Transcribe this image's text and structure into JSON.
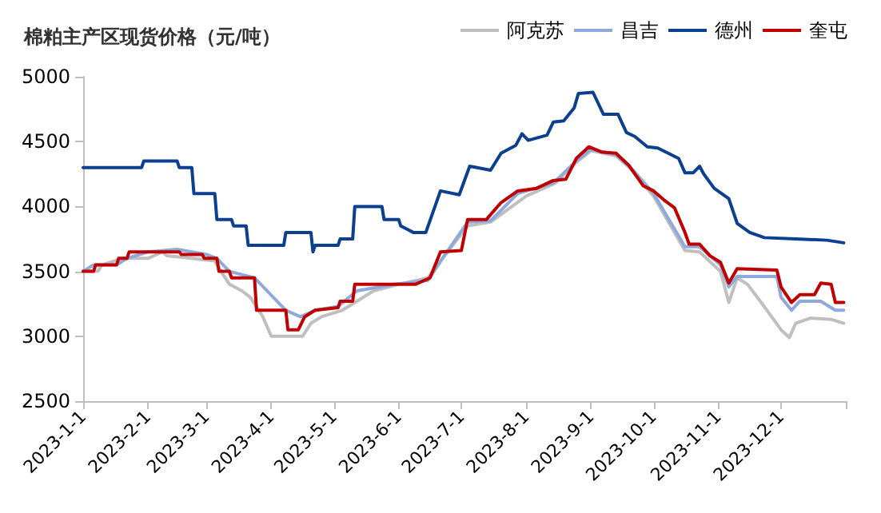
{
  "chart_data": {
    "type": "line",
    "title": "棉粕主产区现货价格（元/吨）",
    "xlim": [
      "2023-01-01",
      "2024-01-01"
    ],
    "xticks": [
      {
        "value": "2023-01-01",
        "label": "2023-1-1"
      },
      {
        "value": "2023-02-01",
        "label": "2023-2-1"
      },
      {
        "value": "2023-03-01",
        "label": "2023-3-1"
      },
      {
        "value": "2023-04-01",
        "label": "2023-4-1"
      },
      {
        "value": "2023-05-01",
        "label": "2023-5-1"
      },
      {
        "value": "2023-06-01",
        "label": "2023-6-1"
      },
      {
        "value": "2023-07-01",
        "label": "2023-7-1"
      },
      {
        "value": "2023-08-01",
        "label": "2023-8-1"
      },
      {
        "value": "2023-09-01",
        "label": "2023-9-1"
      },
      {
        "value": "2023-10-01",
        "label": "2023-10-1"
      },
      {
        "value": "2023-11-01",
        "label": "2023-11-1"
      },
      {
        "value": "2023-12-01",
        "label": "2023-12-1"
      },
      {
        "value": "2024-01-01",
        "label": null
      }
    ],
    "ylim": [
      2500,
      5000
    ],
    "yticks": [
      2500,
      3000,
      3500,
      4000,
      4500,
      5000
    ],
    "grid": false,
    "legend": "top right",
    "marker": "none",
    "line_style": "solid",
    "series": [
      {
        "name": "阿克苏",
        "color": "#bfbfbf",
        "x": [
          "2023-01-01",
          "2023-01-08",
          "2023-01-10",
          "2023-01-20",
          "2023-02-01",
          "2023-02-08",
          "2023-02-10",
          "2023-02-22",
          "2023-03-05",
          "2023-03-08",
          "2023-03-12",
          "2023-03-18",
          "2023-03-22",
          "2023-03-28",
          "2023-04-01",
          "2023-04-16",
          "2023-04-20",
          "2023-04-25",
          "2023-05-05",
          "2023-05-10",
          "2023-05-20",
          "2023-06-01",
          "2023-06-15",
          "2023-06-22",
          "2023-07-04",
          "2023-07-15",
          "2023-08-01",
          "2023-08-15",
          "2023-08-25",
          "2023-09-01",
          "2023-09-13",
          "2023-09-20",
          "2023-10-01",
          "2023-10-16",
          "2023-10-23",
          "2023-11-02",
          "2023-11-06",
          "2023-11-10",
          "2023-11-15",
          "2023-11-22",
          "2023-12-01",
          "2023-12-05",
          "2023-12-08",
          "2023-12-15",
          "2023-12-25",
          "2023-12-31"
        ],
        "values": [
          3500,
          3500,
          3550,
          3600,
          3600,
          3650,
          3620,
          3600,
          3580,
          3500,
          3400,
          3350,
          3300,
          3150,
          3000,
          3000,
          3100,
          3150,
          3200,
          3250,
          3350,
          3400,
          3450,
          3600,
          3850,
          3880,
          4080,
          4180,
          4340,
          4430,
          4390,
          4290,
          4080,
          3660,
          3650,
          3500,
          3260,
          3450,
          3400,
          3250,
          3050,
          2990,
          3100,
          3140,
          3130,
          3100
        ]
      },
      {
        "name": "昌吉",
        "color": "#8eaadb",
        "x": [
          "2023-01-01",
          "2023-01-06",
          "2023-01-17",
          "2023-01-22",
          "2023-02-01",
          "2023-02-15",
          "2023-03-01",
          "2023-03-06",
          "2023-03-12",
          "2023-03-24",
          "2023-04-08",
          "2023-04-15",
          "2023-04-22",
          "2023-05-03",
          "2023-05-12",
          "2023-05-30",
          "2023-06-15",
          "2023-06-22",
          "2023-07-04",
          "2023-07-15",
          "2023-07-28",
          "2023-08-14",
          "2023-08-25",
          "2023-09-01",
          "2023-09-13",
          "2023-09-20",
          "2023-10-01",
          "2023-10-16",
          "2023-10-23",
          "2023-11-02",
          "2023-11-06",
          "2023-11-10",
          "2023-11-29",
          "2023-12-01",
          "2023-12-06",
          "2023-12-10",
          "2023-12-20",
          "2023-12-27",
          "2023-12-31"
        ],
        "values": [
          3500,
          3550,
          3550,
          3600,
          3650,
          3670,
          3630,
          3600,
          3500,
          3450,
          3200,
          3150,
          3200,
          3230,
          3350,
          3400,
          3430,
          3600,
          3880,
          3890,
          4100,
          4180,
          4350,
          4440,
          4400,
          4300,
          4100,
          3690,
          3690,
          3550,
          3380,
          3460,
          3460,
          3300,
          3200,
          3270,
          3270,
          3200,
          3200
        ]
      },
      {
        "name": "德州",
        "color": "#0b3f8f",
        "x": [
          "2023-01-01",
          "2023-01-29",
          "2023-01-30",
          "2023-02-15",
          "2023-02-16",
          "2023-02-22",
          "2023-02-23",
          "2023-03-05",
          "2023-03-06",
          "2023-03-13",
          "2023-03-14",
          "2023-03-20",
          "2023-03-21",
          "2023-04-07",
          "2023-04-08",
          "2023-04-20",
          "2023-04-21",
          "2023-04-22",
          "2023-05-03",
          "2023-05-04",
          "2023-05-10",
          "2023-05-11",
          "2023-05-24",
          "2023-05-25",
          "2023-06-01",
          "2023-06-02",
          "2023-06-08",
          "2023-06-14",
          "2023-06-21",
          "2023-06-30",
          "2023-07-05",
          "2023-07-15",
          "2023-07-20",
          "2023-07-27",
          "2023-07-30",
          "2023-08-02",
          "2023-08-11",
          "2023-08-14",
          "2023-08-19",
          "2023-08-24",
          "2023-08-26",
          "2023-09-02",
          "2023-09-07",
          "2023-09-14",
          "2023-09-18",
          "2023-09-22",
          "2023-09-28",
          "2023-10-03",
          "2023-10-13",
          "2023-10-16",
          "2023-10-20",
          "2023-10-23",
          "2023-10-25",
          "2023-10-30",
          "2023-11-06",
          "2023-11-10",
          "2023-11-16",
          "2023-11-23",
          "2023-12-08",
          "2023-12-23",
          "2023-12-31"
        ],
        "values": [
          4300,
          4300,
          4350,
          4350,
          4300,
          4300,
          4100,
          4100,
          3900,
          3900,
          3850,
          3850,
          3700,
          3700,
          3800,
          3800,
          3650,
          3700,
          3700,
          3750,
          3750,
          4000,
          4000,
          3900,
          3900,
          3850,
          3800,
          3800,
          4120,
          4090,
          4310,
          4280,
          4410,
          4470,
          4560,
          4510,
          4550,
          4650,
          4660,
          4760,
          4870,
          4880,
          4710,
          4710,
          4570,
          4540,
          4460,
          4450,
          4370,
          4260,
          4260,
          4310,
          4250,
          4140,
          4060,
          3870,
          3800,
          3760,
          3750,
          3740,
          3720
        ]
      },
      {
        "name": "奎屯",
        "color": "#c00000",
        "x": [
          "2023-01-01",
          "2023-01-06",
          "2023-01-07",
          "2023-01-17",
          "2023-01-18",
          "2023-01-22",
          "2023-01-23",
          "2023-02-16",
          "2023-02-17",
          "2023-02-27",
          "2023-02-28",
          "2023-03-06",
          "2023-03-07",
          "2023-03-12",
          "2023-03-13",
          "2023-03-24",
          "2023-03-25",
          "2023-04-08",
          "2023-04-09",
          "2023-04-14",
          "2023-04-17",
          "2023-04-22",
          "2023-05-03",
          "2023-05-04",
          "2023-05-10",
          "2023-05-11",
          "2023-06-09",
          "2023-06-16",
          "2023-06-21",
          "2023-07-01",
          "2023-07-04",
          "2023-07-13",
          "2023-07-20",
          "2023-07-28",
          "2023-08-06",
          "2023-08-14",
          "2023-08-20",
          "2023-08-25",
          "2023-08-31",
          "2023-09-06",
          "2023-09-13",
          "2023-09-19",
          "2023-09-26",
          "2023-10-01",
          "2023-10-06",
          "2023-10-11",
          "2023-10-16",
          "2023-10-18",
          "2023-10-23",
          "2023-10-28",
          "2023-11-02",
          "2023-11-06",
          "2023-11-10",
          "2023-11-29",
          "2023-12-01",
          "2023-12-06",
          "2023-12-10",
          "2023-12-17",
          "2023-12-20",
          "2023-12-25",
          "2023-12-27",
          "2023-12-31"
        ],
        "values": [
          3500,
          3500,
          3550,
          3550,
          3600,
          3600,
          3650,
          3650,
          3630,
          3630,
          3600,
          3600,
          3500,
          3500,
          3450,
          3450,
          3200,
          3200,
          3050,
          3050,
          3150,
          3200,
          3220,
          3270,
          3270,
          3400,
          3400,
          3450,
          3650,
          3660,
          3900,
          3900,
          4030,
          4120,
          4140,
          4200,
          4210,
          4370,
          4460,
          4420,
          4410,
          4320,
          4160,
          4120,
          4050,
          3990,
          3800,
          3710,
          3710,
          3620,
          3570,
          3410,
          3520,
          3510,
          3380,
          3260,
          3320,
          3320,
          3410,
          3400,
          3260,
          3260
        ]
      }
    ]
  }
}
